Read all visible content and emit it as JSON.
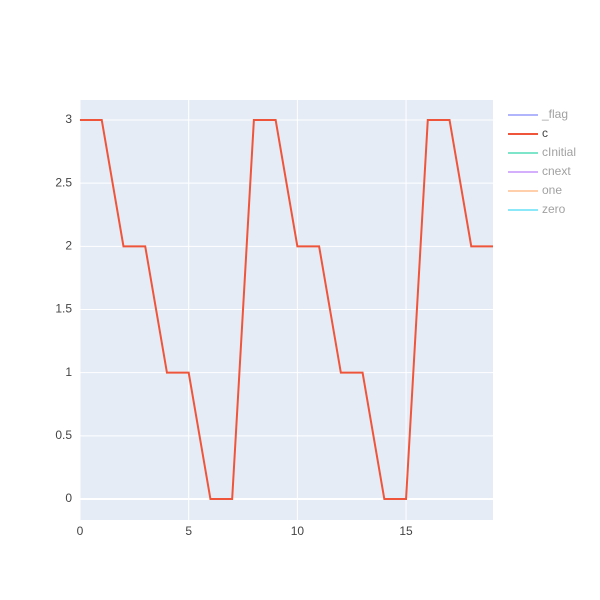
{
  "chart_data": {
    "type": "line",
    "x": [
      0,
      1,
      2,
      3,
      4,
      5,
      6,
      7,
      8,
      9,
      10,
      11,
      12,
      13,
      14,
      15,
      16,
      17,
      18,
      19
    ],
    "series": [
      {
        "name": "_flag",
        "color": "#636efa",
        "visible": false
      },
      {
        "name": "c",
        "color": "#EF553B",
        "visible": true,
        "values": [
          3,
          3,
          2,
          2,
          1,
          1,
          0,
          0,
          3,
          3,
          2,
          2,
          1,
          1,
          0,
          0,
          3,
          3,
          2,
          2
        ]
      },
      {
        "name": "cInitial",
        "color": "#00cc96",
        "visible": false
      },
      {
        "name": "cnext",
        "color": "#ab63fa",
        "visible": false
      },
      {
        "name": "one",
        "color": "#FFA15A",
        "visible": false
      },
      {
        "name": "zero",
        "color": "#19d3f3",
        "visible": false
      }
    ],
    "xlim": [
      0,
      19
    ],
    "xticks": [
      0,
      5,
      10,
      15
    ],
    "ylim": [
      -0.166,
      3.158
    ],
    "yticks": [
      0,
      0.5,
      1,
      1.5,
      2,
      2.5,
      3
    ],
    "grid": true,
    "legend": "right"
  }
}
